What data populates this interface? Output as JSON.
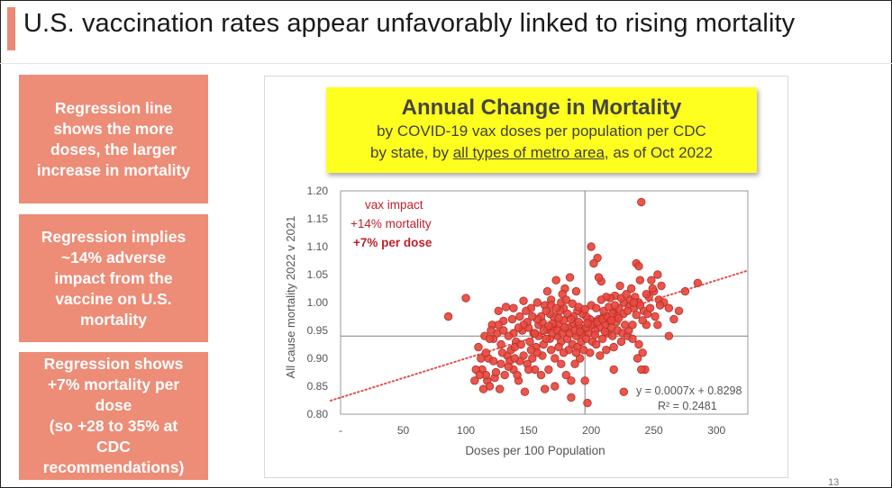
{
  "slide": {
    "title": "U.S. vaccination rates appear unfavorably linked to rising mortality",
    "page_number": "13",
    "accent_color": "#ea8a76"
  },
  "side_boxes": [
    {
      "text": "Regression line\nshows the more\ndoses, the larger\nincrease in mortality"
    },
    {
      "text": "Regression implies\n~14% adverse\nimpact from the\nvaccine on U.S.\nmortality"
    },
    {
      "text": "Regression shows\n+7% mortality per\ndose\n(so +28 to 35% at\nCDC\nrecommendations)"
    }
  ],
  "chart_header": {
    "title": "Annual Change in Mortality",
    "line1": "by COVID-19 vax doses per population per CDC",
    "line2_prefix": "by state, by ",
    "line2_underlined": "all types of metro area",
    "line2_suffix": ", as of Oct 2022",
    "background": "#ffff1f"
  },
  "chart_data": {
    "type": "scatter",
    "xlabel": "Doses per 100 Population",
    "ylabel": "All cause mortality 2022 v 2021",
    "xlim": [
      0,
      325
    ],
    "ylim": [
      0.8,
      1.2
    ],
    "x_ticks": [
      "-",
      "50",
      "100",
      "150",
      "200",
      "250",
      "300"
    ],
    "y_ticks": [
      "0.80",
      "0.85",
      "0.90",
      "0.95",
      "1.00",
      "1.05",
      "1.10",
      "1.15",
      "1.20"
    ],
    "reference_lines": {
      "x": 195,
      "y": 0.94
    },
    "point_color": "#e8473d",
    "trendline": {
      "slope": 0.0007,
      "intercept": 0.8298,
      "color": "#e05050",
      "style": "dotted"
    },
    "equation": "y = 0.0007x + 0.8298",
    "r_squared": "R² = 0.2481",
    "annotations": [
      "vax impact",
      "+14% mortality",
      "+7% per dose"
    ],
    "annotation_color": "#c0202a",
    "points": [
      [
        86,
        0.975
      ],
      [
        100,
        1.008
      ],
      [
        121,
        0.96
      ],
      [
        130,
        0.967
      ],
      [
        115,
        0.94
      ],
      [
        110,
        0.92
      ],
      [
        122,
        0.935
      ],
      [
        125,
        0.945
      ],
      [
        128,
        0.925
      ],
      [
        133,
        0.905
      ],
      [
        136,
        0.915
      ],
      [
        140,
        0.93
      ],
      [
        145,
        0.95
      ],
      [
        150,
        0.955
      ],
      [
        154,
        0.945
      ],
      [
        158,
        0.96
      ],
      [
        161,
        0.965
      ],
      [
        165,
        0.952
      ],
      [
        170,
        0.958
      ],
      [
        174,
        0.962
      ],
      [
        178,
        0.968
      ],
      [
        182,
        0.955
      ],
      [
        186,
        0.962
      ],
      [
        190,
        0.958
      ],
      [
        194,
        0.95
      ],
      [
        198,
        0.945
      ],
      [
        202,
        0.96
      ],
      [
        206,
        0.97
      ],
      [
        210,
        0.975
      ],
      [
        214,
        0.965
      ],
      [
        218,
        0.985
      ],
      [
        222,
        0.99
      ],
      [
        226,
        0.98
      ],
      [
        230,
        0.995
      ],
      [
        234,
        0.99
      ],
      [
        238,
        1.0
      ],
      [
        242,
        0.985
      ],
      [
        246,
        1.01
      ],
      [
        250,
        1.02
      ],
      [
        254,
        1.005
      ],
      [
        258,
        1.0
      ],
      [
        262,
        0.99
      ],
      [
        266,
        0.97
      ],
      [
        270,
        0.985
      ],
      [
        275,
        1.02
      ],
      [
        285,
        1.035
      ],
      [
        240,
        1.18
      ],
      [
        200,
        1.1
      ],
      [
        205,
        1.08
      ],
      [
        202,
        1.07
      ],
      [
        236,
        1.07
      ],
      [
        238,
        1.065
      ],
      [
        239,
        1.04
      ],
      [
        248,
        1.04
      ],
      [
        253,
        1.05
      ],
      [
        256,
        1.03
      ],
      [
        249,
        1.025
      ],
      [
        244,
        1.015
      ],
      [
        232,
        1.025
      ],
      [
        223,
        1.03
      ],
      [
        219,
        1.012
      ],
      [
        215,
        1.008
      ],
      [
        212,
        1.01
      ],
      [
        208,
        1.005
      ],
      [
        208,
        1.038
      ],
      [
        206,
        1.045
      ],
      [
        188,
        1.02
      ],
      [
        183,
        1.045
      ],
      [
        179,
        1.025
      ],
      [
        177,
        1.015
      ],
      [
        172,
        1.04
      ],
      [
        168,
        1.005
      ],
      [
        163,
        0.995
      ],
      [
        157,
        1.0
      ],
      [
        152,
        0.99
      ],
      [
        148,
        0.985
      ],
      [
        143,
        0.975
      ],
      [
        137,
        0.97
      ],
      [
        132,
        0.992
      ],
      [
        126,
        0.985
      ],
      [
        120,
        0.95
      ],
      [
        118,
        0.9
      ],
      [
        113,
        0.88
      ],
      [
        117,
        0.86
      ],
      [
        119,
        0.85
      ],
      [
        123,
        0.865
      ],
      [
        127,
        0.845
      ],
      [
        124,
        0.875
      ],
      [
        131,
        0.87
      ],
      [
        138,
        0.88
      ],
      [
        142,
        0.86
      ],
      [
        147,
        0.84
      ],
      [
        149,
        0.89
      ],
      [
        153,
        0.9
      ],
      [
        155,
        0.88
      ],
      [
        160,
        0.87
      ],
      [
        166,
        0.88
      ],
      [
        171,
        0.9
      ],
      [
        176,
        0.89
      ],
      [
        180,
        0.87
      ],
      [
        184,
        0.86
      ],
      [
        187,
        0.89
      ],
      [
        191,
        0.9
      ],
      [
        195,
        0.86
      ],
      [
        197,
        0.82
      ],
      [
        184,
        0.83
      ],
      [
        171,
        0.85
      ],
      [
        163,
        0.845
      ],
      [
        150,
        0.88
      ],
      [
        141,
        0.87
      ],
      [
        135,
        0.895
      ],
      [
        129,
        0.91
      ],
      [
        108,
        0.88
      ],
      [
        112,
        0.9
      ],
      [
        116,
        0.91
      ],
      [
        139,
        0.92
      ],
      [
        144,
        0.925
      ],
      [
        151,
        0.93
      ],
      [
        156,
        0.92
      ],
      [
        162,
        0.925
      ],
      [
        167,
        0.935
      ],
      [
        173,
        0.94
      ],
      [
        176,
        0.93
      ],
      [
        181,
        0.935
      ],
      [
        185,
        0.925
      ],
      [
        189,
        0.92
      ],
      [
        192,
        0.93
      ],
      [
        196,
        0.935
      ],
      [
        201,
        0.93
      ],
      [
        204,
        0.925
      ],
      [
        209,
        0.935
      ],
      [
        213,
        0.945
      ],
      [
        217,
        0.94
      ],
      [
        221,
        0.95
      ],
      [
        225,
        0.945
      ],
      [
        229,
        0.94
      ],
      [
        233,
        0.935
      ],
      [
        238,
        0.925
      ],
      [
        241,
        0.91
      ],
      [
        243,
        0.88
      ],
      [
        240,
        0.88
      ],
      [
        237,
        0.9
      ],
      [
        230,
        0.95
      ],
      [
        227,
        0.96
      ],
      [
        220,
        0.965
      ],
      [
        216,
        0.955
      ],
      [
        211,
        0.96
      ],
      [
        207,
        0.955
      ],
      [
        203,
        0.95
      ],
      [
        199,
        0.97
      ],
      [
        196,
        0.975
      ],
      [
        193,
        0.98
      ],
      [
        189,
        0.985
      ],
      [
        186,
        0.975
      ],
      [
        181,
        0.98
      ],
      [
        178,
        0.99
      ],
      [
        175,
        0.985
      ],
      [
        170,
        0.975
      ],
      [
        167,
        0.98
      ],
      [
        164,
        0.985
      ],
      [
        160,
        0.975
      ],
      [
        157,
        0.97
      ],
      [
        153,
        0.975
      ],
      [
        149,
        0.965
      ],
      [
        146,
        0.96
      ],
      [
        142,
        0.955
      ],
      [
        138,
        0.945
      ],
      [
        134,
        0.94
      ],
      [
        130,
        0.95
      ],
      [
        126,
        0.96
      ],
      [
        158,
        0.94
      ],
      [
        164,
        0.935
      ],
      [
        169,
        0.945
      ],
      [
        173,
        0.95
      ],
      [
        177,
        0.945
      ],
      [
        183,
        0.945
      ],
      [
        188,
        0.94
      ],
      [
        192,
        0.945
      ],
      [
        196,
        0.955
      ],
      [
        200,
        0.96
      ],
      [
        205,
        0.965
      ],
      [
        209,
        0.97
      ],
      [
        213,
        0.975
      ],
      [
        217,
        0.98
      ],
      [
        221,
        0.975
      ],
      [
        226,
        1.0
      ],
      [
        231,
        1.005
      ],
      [
        235,
        1.01
      ],
      [
        239,
        0.995
      ],
      [
        245,
        0.98
      ],
      [
        251,
        0.975
      ],
      [
        253,
        0.96
      ],
      [
        244,
        0.96
      ],
      [
        233,
        0.96
      ],
      [
        224,
        0.93
      ],
      [
        218,
        0.92
      ],
      [
        212,
        0.915
      ],
      [
        207,
        0.905
      ],
      [
        199,
        0.91
      ],
      [
        194,
        0.915
      ],
      [
        188,
        0.91
      ],
      [
        182,
        0.915
      ],
      [
        178,
        0.91
      ],
      [
        174,
        0.92
      ],
      [
        168,
        0.915
      ],
      [
        161,
        0.905
      ],
      [
        157,
        0.91
      ],
      [
        152,
        0.915
      ],
      [
        146,
        0.905
      ],
      [
        143,
        0.895
      ],
      [
        139,
        0.9
      ],
      [
        134,
        0.885
      ],
      [
        128,
        0.89
      ],
      [
        122,
        0.895
      ],
      [
        116,
        0.87
      ],
      [
        111,
        0.87
      ],
      [
        107,
        0.86
      ],
      [
        114,
        0.845
      ],
      [
        168,
        0.995
      ],
      [
        172,
        0.99
      ],
      [
        176,
        1.0
      ],
      [
        180,
        1.005
      ],
      [
        185,
        0.998
      ],
      [
        190,
        0.992
      ],
      [
        195,
        0.988
      ],
      [
        200,
        0.995
      ],
      [
        204,
        0.99
      ],
      [
        210,
        0.985
      ],
      [
        214,
        0.992
      ],
      [
        219,
        0.995
      ],
      [
        224,
        1.008
      ],
      [
        228,
        1.015
      ],
      [
        234,
        1.0
      ],
      [
        165,
        1.02
      ],
      [
        146,
        1.003
      ],
      [
        138,
        0.99
      ],
      [
        119,
        0.935
      ],
      [
        187,
        0.95
      ],
      [
        179,
        0.955
      ],
      [
        184,
        0.97
      ],
      [
        190,
        0.965
      ],
      [
        174,
        0.972
      ],
      [
        169,
        0.962
      ],
      [
        166,
        0.958
      ],
      [
        162,
        0.95
      ],
      [
        155,
        0.945
      ],
      [
        191,
        0.948
      ],
      [
        197,
        0.963
      ],
      [
        203,
        0.942
      ],
      [
        211,
        0.948
      ],
      [
        216,
        0.968
      ],
      [
        222,
        0.972
      ],
      [
        229,
        0.985
      ],
      [
        236,
        0.978
      ],
      [
        241,
        0.968
      ],
      [
        247,
        0.99
      ],
      [
        255,
        0.995
      ],
      [
        262,
        0.94
      ],
      [
        218,
        0.88
      ],
      [
        226,
        0.84
      ]
    ]
  }
}
